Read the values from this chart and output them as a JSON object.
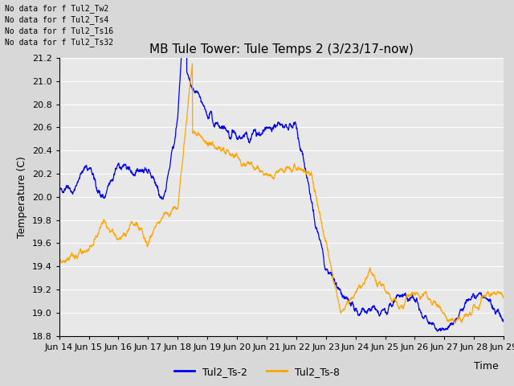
{
  "title": "MB Tule Tower: Tule Temps 2 (3/23/17-now)",
  "xlabel": "Time",
  "ylabel": "Temperature (C)",
  "ylim": [
    18.8,
    21.2
  ],
  "xlim": [
    0,
    15
  ],
  "x_tick_labels": [
    "Jun 14",
    "Jun 15",
    "Jun 16",
    "Jun 17",
    "Jun 18",
    "Jun 19",
    "Jun 20",
    "Jun 21",
    "Jun 22",
    "Jun 23",
    "Jun 24",
    "Jun 25",
    "Jun 26",
    "Jun 27",
    "Jun 28",
    "Jun 29"
  ],
  "yticks": [
    18.8,
    19.0,
    19.2,
    19.4,
    19.6,
    19.8,
    20.0,
    20.2,
    20.4,
    20.6,
    20.8,
    21.0,
    21.2
  ],
  "color_blue": "#0000ee",
  "color_orange": "#FFA500",
  "legend_entries": [
    "Tul2_Ts-2",
    "Tul2_Ts-8"
  ],
  "no_data_lines": [
    "No data for f Tul2_Tw2",
    "No data for f Tul2_Ts4",
    "No data for f Tul2_Ts16",
    "No data for f Tul2_Ts32"
  ],
  "fig_bg_color": "#d8d8d8",
  "plot_bg_color": "#e8e8e8",
  "grid_color": "#ffffff",
  "title_fontsize": 11,
  "axis_label_fontsize": 9,
  "tick_fontsize": 8,
  "nodata_fontsize": 7,
  "legend_fontsize": 9
}
